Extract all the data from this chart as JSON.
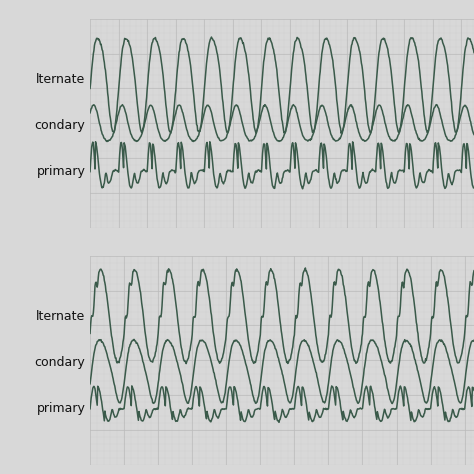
{
  "background_color": "#e8e8e8",
  "grid_color_minor": "#cccccc",
  "grid_color_major": "#bbbbbb",
  "ecg_color": "#3a5a4a",
  "line_width": 1.1,
  "text_color": "#111111",
  "text_fontsize": 9,
  "labels": [
    "lternate",
    "condary",
    "primary"
  ],
  "panel_bg": "#eaeaea",
  "separator_color": "#e0e0e0",
  "fig_bg": "#d8d8d8"
}
